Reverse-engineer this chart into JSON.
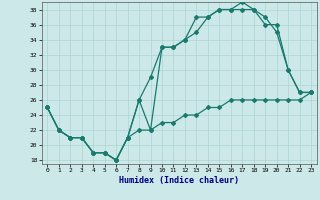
{
  "xlabel": "Humidex (Indice chaleur)",
  "xlim": [
    -0.5,
    23.5
  ],
  "ylim": [
    17.5,
    39
  ],
  "yticks": [
    18,
    20,
    22,
    24,
    26,
    28,
    30,
    32,
    34,
    36,
    38
  ],
  "xticks": [
    0,
    1,
    2,
    3,
    4,
    5,
    6,
    7,
    8,
    9,
    10,
    11,
    12,
    13,
    14,
    15,
    16,
    17,
    18,
    19,
    20,
    21,
    22,
    23
  ],
  "line_color": "#1a7a6e",
  "bg_color": "#cce8e8",
  "grid_color": "#aad4d4",
  "line1_x": [
    0,
    1,
    2,
    3,
    4,
    5,
    6,
    7,
    8,
    9,
    10,
    11,
    12,
    13,
    14,
    15,
    16,
    17,
    18,
    19,
    20,
    21,
    22,
    23
  ],
  "line1_y": [
    25,
    22,
    21,
    21,
    19,
    19,
    18,
    21,
    26,
    29,
    33,
    33,
    34,
    37,
    37,
    38,
    38,
    38,
    38,
    37,
    35,
    30,
    27,
    27
  ],
  "line2_x": [
    0,
    1,
    2,
    3,
    4,
    5,
    6,
    7,
    8,
    9,
    10,
    11,
    12,
    13,
    14,
    15,
    16,
    17,
    18,
    19,
    20,
    21,
    22,
    23
  ],
  "line2_y": [
    25,
    22,
    21,
    21,
    19,
    19,
    18,
    21,
    22,
    22,
    23,
    23,
    24,
    24,
    25,
    25,
    26,
    26,
    26,
    26,
    26,
    26,
    26,
    27
  ],
  "line3_x": [
    0,
    1,
    2,
    3,
    4,
    5,
    6,
    7,
    8,
    9,
    10,
    11,
    12,
    13,
    14,
    15,
    16,
    17,
    18,
    19,
    20,
    21,
    22,
    23
  ],
  "line3_y": [
    25,
    22,
    21,
    21,
    19,
    19,
    18,
    21,
    26,
    22,
    33,
    33,
    34,
    35,
    37,
    38,
    38,
    39,
    38,
    36,
    36,
    30,
    27,
    27
  ],
  "marker_size": 2.0,
  "linewidth": 0.9
}
